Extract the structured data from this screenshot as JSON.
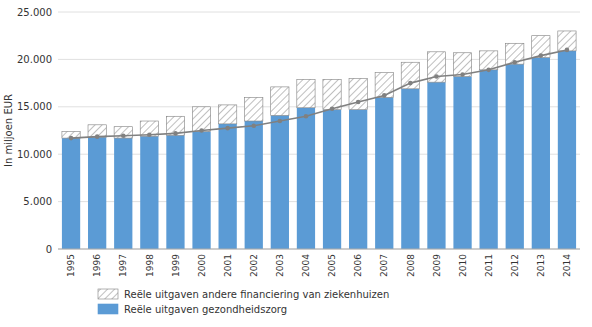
{
  "chart_data": {
    "type": "bar",
    "stacked": true,
    "ylabel": "In miljoen EUR",
    "categories": [
      "1995",
      "1996",
      "1997",
      "1998",
      "1999",
      "2000",
      "2001",
      "2002",
      "2003",
      "2004",
      "2005",
      "2006",
      "2007",
      "2008",
      "2009",
      "2010",
      "2011",
      "2012",
      "2013",
      "2014"
    ],
    "series": [
      {
        "name": "Reële uitgaven gezondheidszorg",
        "type": "bar",
        "color": "#5B9BD5",
        "values": [
          11700,
          11800,
          11700,
          11900,
          12000,
          12400,
          13200,
          13500,
          14100,
          14900,
          14700,
          14700,
          16000,
          16900,
          17600,
          18200,
          18900,
          19500,
          20200,
          20900
        ]
      },
      {
        "name": "Reële uitgaven andere financiering van ziekenhuizen",
        "type": "bar",
        "color": "#808080",
        "values": [
          700,
          1300,
          1200,
          1600,
          2000,
          2600,
          2000,
          2500,
          3000,
          3000,
          3200,
          3300,
          2600,
          2800,
          3200,
          2500,
          2000,
          2200,
          2300,
          2100
        ]
      },
      {
        "type": "line",
        "color": "#808080",
        "marker": "circle",
        "values": [
          11700,
          11850,
          11950,
          12050,
          12200,
          12500,
          12750,
          13000,
          13500,
          14000,
          14800,
          15500,
          16200,
          17500,
          18200,
          18400,
          18900,
          19700,
          20400,
          21000
        ]
      }
    ],
    "ylim": [
      0,
      25000
    ],
    "yticks": [
      0,
      {
        "value": 5000,
        "label": "5.000"
      },
      {
        "value": 10000,
        "label": "10.000"
      },
      {
        "value": 15000,
        "label": "15.000"
      },
      {
        "value": 20000,
        "label": "20.000"
      },
      {
        "value": 25000,
        "label": "25.000"
      }
    ],
    "grid": true,
    "legend": "bottom"
  }
}
